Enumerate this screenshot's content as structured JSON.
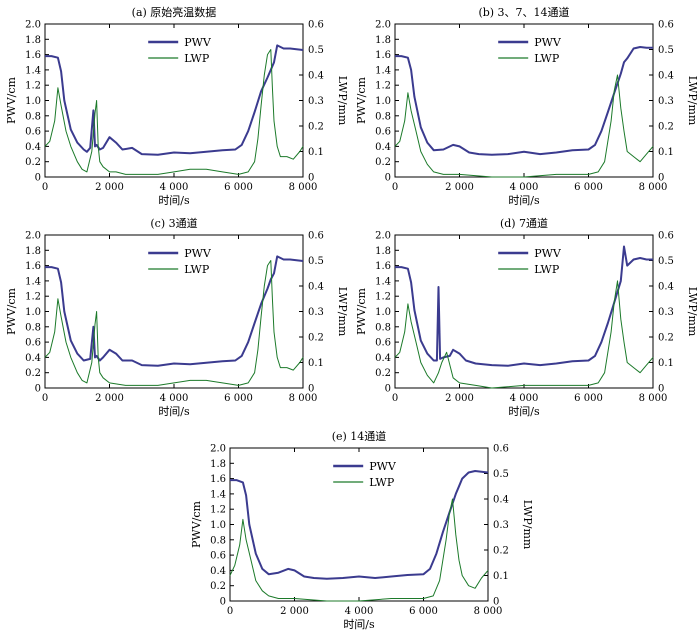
{
  "figure": {
    "panel_ids": [
      "a",
      "b",
      "c",
      "d",
      "e"
    ]
  },
  "styles": {
    "pwv_color": "#3b3b8f",
    "lwp_color": "#1c7a2a",
    "axis_color": "#000000"
  },
  "chart_data": [
    {
      "id": "a",
      "type": "line",
      "title": "(a) 原始亮温数据",
      "xlabel": "时间/s",
      "ylabel_left": "PWV/cm",
      "ylabel_right": "LWP/mm",
      "xlim": [
        0,
        8000
      ],
      "ylim_left": [
        0,
        2.0
      ],
      "ylim_right": [
        0,
        0.6
      ],
      "xticks": [
        0,
        2000,
        4000,
        6000,
        8000
      ],
      "xtick_labels": [
        "0",
        "2 000",
        "4 000",
        "6 000",
        "8 000"
      ],
      "yticks_left": [
        0,
        0.2,
        0.4,
        0.6,
        0.8,
        1.0,
        1.2,
        1.4,
        1.6,
        1.8,
        2.0
      ],
      "ytick_labels_left": [
        "0",
        "0.2",
        "0.4",
        "0.6",
        "0.8",
        "1.0",
        "1.2",
        "1.4",
        "1.6",
        "1.8",
        "2.0"
      ],
      "yticks_right": [
        0,
        0.1,
        0.2,
        0.3,
        0.4,
        0.5,
        0.6
      ],
      "ytick_labels_right": [
        "0",
        "0.1",
        "0.2",
        "0.3",
        "0.4",
        "0.5",
        "0.6"
      ],
      "legend_position": "top-center",
      "series": [
        {
          "name": "PWV",
          "axis": "left",
          "x": [
            0,
            200,
            400,
            500,
            600,
            800,
            1000,
            1200,
            1300,
            1400,
            1500,
            1550,
            1600,
            1700,
            1800,
            2000,
            2200,
            2400,
            2700,
            3000,
            3500,
            4000,
            4500,
            5000,
            5500,
            5900,
            6100,
            6300,
            6500,
            6700,
            6900,
            7000,
            7100,
            7200,
            7400,
            7600,
            7800,
            8000
          ],
          "y": [
            1.58,
            1.58,
            1.56,
            1.38,
            1.0,
            0.62,
            0.45,
            0.36,
            0.33,
            0.38,
            0.87,
            0.4,
            0.42,
            0.36,
            0.38,
            0.52,
            0.45,
            0.36,
            0.38,
            0.3,
            0.29,
            0.32,
            0.31,
            0.33,
            0.35,
            0.36,
            0.42,
            0.6,
            0.85,
            1.12,
            1.3,
            1.4,
            1.5,
            1.72,
            1.68,
            1.68,
            1.67,
            1.66
          ]
        },
        {
          "name": "LWP",
          "axis": "right",
          "x": [
            0,
            150,
            300,
            400,
            500,
            650,
            800,
            1000,
            1150,
            1300,
            1450,
            1550,
            1600,
            1650,
            1700,
            1800,
            2000,
            2200,
            2500,
            3000,
            3500,
            4000,
            4500,
            5000,
            5500,
            6000,
            6300,
            6500,
            6600,
            6700,
            6800,
            6900,
            7000,
            7050,
            7100,
            7200,
            7300,
            7500,
            7700,
            7900,
            8000
          ],
          "y": [
            0.12,
            0.14,
            0.22,
            0.35,
            0.28,
            0.18,
            0.12,
            0.06,
            0.03,
            0.02,
            0.1,
            0.25,
            0.3,
            0.12,
            0.06,
            0.04,
            0.02,
            0.02,
            0.01,
            0.01,
            0.01,
            0.02,
            0.03,
            0.03,
            0.02,
            0.01,
            0.02,
            0.06,
            0.15,
            0.28,
            0.4,
            0.48,
            0.5,
            0.35,
            0.22,
            0.12,
            0.08,
            0.08,
            0.07,
            0.1,
            0.12
          ]
        }
      ]
    },
    {
      "id": "b",
      "type": "line",
      "title": "(b) 3、7、14通道",
      "xlabel": "时间/s",
      "ylabel_left": "PWV/cm",
      "ylabel_right": "LWP/mm",
      "xlim": [
        0,
        8000
      ],
      "ylim_left": [
        0,
        2.0
      ],
      "ylim_right": [
        0,
        0.6
      ],
      "xticks": [
        0,
        2000,
        4000,
        6000,
        8000
      ],
      "xtick_labels": [
        "0",
        "2 000",
        "4 000",
        "6 000",
        "8 000"
      ],
      "yticks_left": [
        0,
        0.2,
        0.4,
        0.6,
        0.8,
        1.0,
        1.2,
        1.4,
        1.6,
        1.8,
        2.0
      ],
      "ytick_labels_left": [
        "0",
        "0.2",
        "0.4",
        "0.6",
        "0.8",
        "1.0",
        "1.2",
        "1.4",
        "1.6",
        "1.8",
        "2.0"
      ],
      "yticks_right": [
        0,
        0.1,
        0.2,
        0.3,
        0.4,
        0.5,
        0.6
      ],
      "ytick_labels_right": [
        "0",
        "0.1",
        "0.2",
        "0.3",
        "0.4",
        "0.5",
        "0.6"
      ],
      "legend_position": "top-center",
      "series": [
        {
          "name": "PWV",
          "axis": "left",
          "x": [
            0,
            200,
            400,
            500,
            600,
            800,
            1000,
            1200,
            1500,
            1800,
            2000,
            2300,
            2600,
            3000,
            3500,
            4000,
            4500,
            5000,
            5500,
            6000,
            6200,
            6400,
            6600,
            6800,
            7000,
            7100,
            7200,
            7400,
            7600,
            7800,
            8000
          ],
          "y": [
            1.58,
            1.58,
            1.56,
            1.4,
            1.05,
            0.65,
            0.45,
            0.35,
            0.36,
            0.42,
            0.4,
            0.32,
            0.3,
            0.29,
            0.3,
            0.33,
            0.3,
            0.32,
            0.35,
            0.36,
            0.42,
            0.6,
            0.85,
            1.1,
            1.35,
            1.5,
            1.55,
            1.68,
            1.7,
            1.69,
            1.69
          ]
        },
        {
          "name": "LWP",
          "axis": "right",
          "x": [
            0,
            150,
            300,
            400,
            500,
            650,
            800,
            1000,
            1200,
            1500,
            2000,
            3000,
            4000,
            5000,
            6000,
            6300,
            6500,
            6700,
            6800,
            6900,
            7000,
            7100,
            7200,
            7400,
            7600,
            7800,
            8000
          ],
          "y": [
            0.12,
            0.14,
            0.22,
            0.33,
            0.26,
            0.18,
            0.1,
            0.05,
            0.02,
            0.01,
            0.01,
            0.0,
            0.0,
            0.01,
            0.01,
            0.02,
            0.06,
            0.22,
            0.34,
            0.4,
            0.27,
            0.18,
            0.1,
            0.08,
            0.06,
            0.09,
            0.12
          ]
        }
      ]
    },
    {
      "id": "c",
      "type": "line",
      "title": "(c) 3通道",
      "xlabel": "时间/s",
      "ylabel_left": "PWV/cm",
      "ylabel_right": "LWP/mm",
      "xlim": [
        0,
        8000
      ],
      "ylim_left": [
        0,
        2.0
      ],
      "ylim_right": [
        0,
        0.6
      ],
      "xticks": [
        0,
        2000,
        4000,
        6000,
        8000
      ],
      "xtick_labels": [
        "0",
        "2 000",
        "4 000",
        "6 000",
        "8 000"
      ],
      "yticks_left": [
        0,
        0.2,
        0.4,
        0.6,
        0.8,
        1.0,
        1.2,
        1.4,
        1.6,
        1.8,
        2.0
      ],
      "ytick_labels_left": [
        "0",
        "0.2",
        "0.4",
        "0.6",
        "0.8",
        "1.0",
        "1.2",
        "1.4",
        "1.6",
        "1.8",
        "2.0"
      ],
      "yticks_right": [
        0,
        0.1,
        0.2,
        0.3,
        0.4,
        0.5,
        0.6
      ],
      "ytick_labels_right": [
        "0",
        "0.1",
        "0.2",
        "0.3",
        "0.4",
        "0.5",
        "0.6"
      ],
      "legend_position": "top-center",
      "series": [
        {
          "name": "PWV",
          "axis": "left",
          "x": [
            0,
            200,
            400,
            500,
            600,
            800,
            1000,
            1200,
            1400,
            1500,
            1550,
            1600,
            1700,
            1800,
            2000,
            2200,
            2400,
            2700,
            3000,
            3500,
            4000,
            4500,
            5000,
            5500,
            5900,
            6100,
            6300,
            6500,
            6700,
            6900,
            7000,
            7100,
            7200,
            7400,
            7600,
            7800,
            8000
          ],
          "y": [
            1.58,
            1.58,
            1.56,
            1.38,
            1.0,
            0.62,
            0.45,
            0.36,
            0.38,
            0.8,
            0.4,
            0.42,
            0.36,
            0.4,
            0.5,
            0.45,
            0.36,
            0.36,
            0.3,
            0.29,
            0.32,
            0.31,
            0.33,
            0.35,
            0.36,
            0.42,
            0.6,
            0.85,
            1.1,
            1.3,
            1.42,
            1.5,
            1.72,
            1.68,
            1.68,
            1.67,
            1.66
          ]
        },
        {
          "name": "LWP",
          "axis": "right",
          "x": [
            0,
            150,
            300,
            400,
            500,
            650,
            800,
            1000,
            1150,
            1300,
            1450,
            1550,
            1600,
            1650,
            1700,
            1800,
            2000,
            2500,
            3000,
            3500,
            4000,
            4500,
            5000,
            5500,
            6000,
            6300,
            6500,
            6600,
            6700,
            6800,
            6900,
            7000,
            7050,
            7100,
            7200,
            7300,
            7500,
            7700,
            7900,
            8000
          ],
          "y": [
            0.12,
            0.14,
            0.22,
            0.35,
            0.28,
            0.18,
            0.12,
            0.06,
            0.03,
            0.02,
            0.1,
            0.25,
            0.3,
            0.12,
            0.06,
            0.04,
            0.02,
            0.01,
            0.01,
            0.01,
            0.02,
            0.03,
            0.03,
            0.02,
            0.01,
            0.02,
            0.06,
            0.15,
            0.28,
            0.4,
            0.48,
            0.5,
            0.35,
            0.22,
            0.12,
            0.08,
            0.08,
            0.07,
            0.1,
            0.12
          ]
        }
      ]
    },
    {
      "id": "d",
      "type": "line",
      "title": "(d) 7通道",
      "xlabel": "时间/s",
      "ylabel_left": "PWV/cm",
      "ylabel_right": "LWP/mm",
      "xlim": [
        0,
        8000
      ],
      "ylim_left": [
        0,
        2.0
      ],
      "ylim_right": [
        0,
        0.6
      ],
      "xticks": [
        0,
        2000,
        4000,
        6000,
        8000
      ],
      "xtick_labels": [
        "0",
        "2 000",
        "4 000",
        "6 000",
        "8 000"
      ],
      "yticks_left": [
        0,
        0.2,
        0.4,
        0.6,
        0.8,
        1.0,
        1.2,
        1.4,
        1.6,
        1.8,
        2.0
      ],
      "ytick_labels_left": [
        "0",
        "0.2",
        "0.4",
        "0.6",
        "0.8",
        "1.0",
        "1.2",
        "1.4",
        "1.6",
        "1.8",
        "2.0"
      ],
      "yticks_right": [
        0,
        0.1,
        0.2,
        0.3,
        0.4,
        0.5,
        0.6
      ],
      "ytick_labels_right": [
        "0",
        "0.1",
        "0.2",
        "0.3",
        "0.4",
        "0.5",
        "0.6"
      ],
      "legend_position": "top-center",
      "series": [
        {
          "name": "PWV",
          "axis": "left",
          "x": [
            0,
            200,
            400,
            500,
            600,
            800,
            1000,
            1200,
            1300,
            1350,
            1400,
            1500,
            1700,
            1800,
            2000,
            2200,
            2500,
            3000,
            3500,
            4000,
            4500,
            5000,
            5500,
            6000,
            6200,
            6400,
            6600,
            6800,
            7000,
            7100,
            7200,
            7400,
            7600,
            7800,
            8000
          ],
          "y": [
            1.58,
            1.58,
            1.56,
            1.38,
            1.02,
            0.62,
            0.45,
            0.36,
            0.36,
            1.32,
            0.38,
            0.4,
            0.42,
            0.5,
            0.45,
            0.36,
            0.32,
            0.3,
            0.29,
            0.32,
            0.3,
            0.32,
            0.35,
            0.36,
            0.42,
            0.6,
            0.85,
            1.12,
            1.4,
            1.85,
            1.6,
            1.68,
            1.7,
            1.68,
            1.68
          ]
        },
        {
          "name": "LWP",
          "axis": "right",
          "x": [
            0,
            150,
            300,
            400,
            500,
            650,
            800,
            1000,
            1200,
            1350,
            1450,
            1600,
            1800,
            2000,
            2500,
            3000,
            4000,
            5000,
            6000,
            6300,
            6500,
            6700,
            6800,
            6900,
            7000,
            7100,
            7200,
            7400,
            7600,
            7800,
            8000
          ],
          "y": [
            0.12,
            0.14,
            0.22,
            0.33,
            0.26,
            0.18,
            0.1,
            0.05,
            0.02,
            0.06,
            0.1,
            0.14,
            0.04,
            0.02,
            0.01,
            0.0,
            0.01,
            0.01,
            0.01,
            0.02,
            0.06,
            0.22,
            0.34,
            0.42,
            0.27,
            0.18,
            0.1,
            0.08,
            0.06,
            0.09,
            0.12
          ]
        }
      ]
    },
    {
      "id": "e",
      "type": "line",
      "title": "(e) 14通道",
      "xlabel": "时间/s",
      "ylabel_left": "PWV/cm",
      "ylabel_right": "LWP/mm",
      "xlim": [
        0,
        8000
      ],
      "ylim_left": [
        0,
        2.0
      ],
      "ylim_right": [
        0,
        0.6
      ],
      "xticks": [
        0,
        2000,
        4000,
        6000,
        8000
      ],
      "xtick_labels": [
        "0",
        "2 000",
        "4 000",
        "6 000",
        "8 000"
      ],
      "yticks_left": [
        0,
        0.2,
        0.4,
        0.6,
        0.8,
        1.0,
        1.2,
        1.4,
        1.6,
        1.8,
        2.0
      ],
      "ytick_labels_left": [
        "0",
        "0.2",
        "0.4",
        "0.6",
        "0.8",
        "1.0",
        "1.2",
        "1.4",
        "1.6",
        "1.8",
        "2.0"
      ],
      "yticks_right": [
        0,
        0.1,
        0.2,
        0.3,
        0.4,
        0.5,
        0.6
      ],
      "ytick_labels_right": [
        "0",
        "0.1",
        "0.2",
        "0.3",
        "0.4",
        "0.5",
        "0.6"
      ],
      "legend_position": "top-center",
      "series": [
        {
          "name": "PWV",
          "axis": "left",
          "x": [
            0,
            200,
            400,
            500,
            600,
            800,
            1000,
            1200,
            1500,
            1800,
            2000,
            2300,
            2600,
            3000,
            3500,
            4000,
            4500,
            5000,
            5500,
            6000,
            6200,
            6400,
            6600,
            6800,
            7000,
            7100,
            7200,
            7400,
            7600,
            7800,
            8000
          ],
          "y": [
            1.58,
            1.58,
            1.55,
            1.38,
            1.0,
            0.62,
            0.42,
            0.35,
            0.37,
            0.42,
            0.4,
            0.32,
            0.3,
            0.29,
            0.3,
            0.32,
            0.3,
            0.32,
            0.34,
            0.35,
            0.42,
            0.62,
            0.9,
            1.15,
            1.4,
            1.5,
            1.6,
            1.68,
            1.7,
            1.69,
            1.68
          ]
        },
        {
          "name": "LWP",
          "axis": "right",
          "x": [
            0,
            150,
            300,
            400,
            500,
            650,
            800,
            1000,
            1200,
            1500,
            2000,
            3000,
            4000,
            5000,
            6000,
            6300,
            6500,
            6700,
            6800,
            6900,
            7000,
            7100,
            7200,
            7400,
            7600,
            7800,
            8000
          ],
          "y": [
            0.1,
            0.14,
            0.22,
            0.32,
            0.24,
            0.16,
            0.08,
            0.04,
            0.02,
            0.01,
            0.01,
            0.0,
            0.0,
            0.01,
            0.01,
            0.02,
            0.08,
            0.24,
            0.34,
            0.4,
            0.26,
            0.16,
            0.1,
            0.06,
            0.05,
            0.09,
            0.12
          ]
        }
      ]
    }
  ]
}
